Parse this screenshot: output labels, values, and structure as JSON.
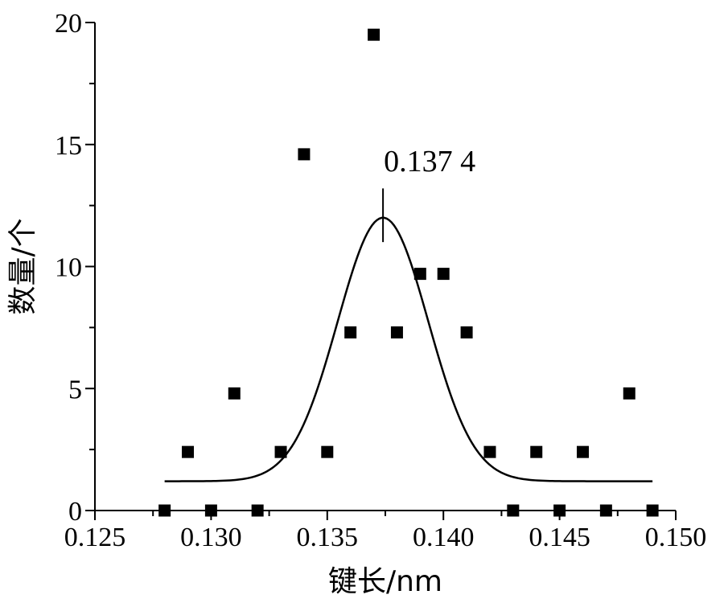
{
  "chart_data": {
    "type": "scatter",
    "title": "",
    "xlabel": "键长/nm",
    "ylabel": "数量/个",
    "xlim": [
      0.125,
      0.15
    ],
    "ylim": [
      0,
      20
    ],
    "xticks": [
      "0.125",
      "0.130",
      "0.135",
      "0.140",
      "0.145",
      "0.150"
    ],
    "yticks": [
      "0",
      "5",
      "10",
      "15",
      "20"
    ],
    "grid": false,
    "legend": "none",
    "colors": {
      "marker": "#000000",
      "line": "#000000"
    },
    "points": {
      "x": [
        0.128,
        0.129,
        0.13,
        0.131,
        0.132,
        0.133,
        0.134,
        0.135,
        0.136,
        0.137,
        0.138,
        0.139,
        0.14,
        0.141,
        0.142,
        0.143,
        0.144,
        0.145,
        0.146,
        0.147,
        0.148,
        0.149
      ],
      "y": [
        0,
        2.4,
        0,
        4.8,
        0,
        2.4,
        14.6,
        2.4,
        7.3,
        19.5,
        7.3,
        9.7,
        9.7,
        7.3,
        2.4,
        0,
        2.4,
        0,
        2.4,
        0,
        4.8,
        0
      ]
    },
    "fit_curve": {
      "type": "gaussian",
      "center": 0.1374,
      "baseline": 1.2,
      "peak": 12.0,
      "sigma": 0.00195,
      "x_range": [
        0.128,
        0.149
      ]
    },
    "annotation": {
      "text": "0.137 4",
      "x": 0.1374
    }
  }
}
